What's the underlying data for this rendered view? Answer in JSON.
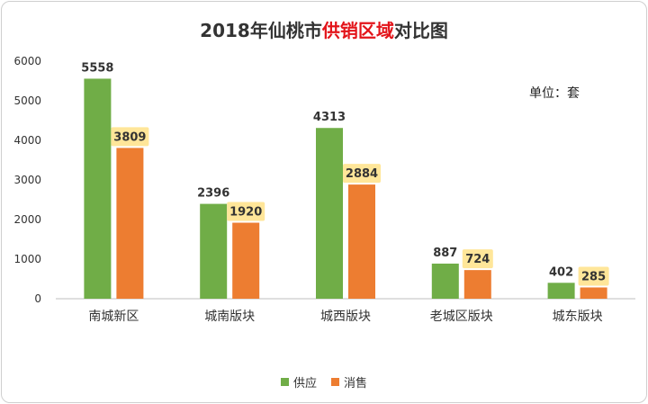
{
  "title": {
    "year": "2018",
    "part1": "年仙桃市",
    "highlight": "供销区域",
    "part2": "对比图"
  },
  "unit_label": "单位：套",
  "chart_data": {
    "type": "bar",
    "title": "2018年仙桃市供销区域对比图",
    "categories": [
      "南城新区",
      "城南版块",
      "城西版块",
      "老城区版块",
      "城东版块"
    ],
    "series": [
      {
        "name": "供应",
        "color": "#70ad47",
        "values": [
          5558,
          2396,
          4313,
          887,
          402
        ]
      },
      {
        "name": "消售",
        "color": "#ed7d31",
        "values": [
          3809,
          1920,
          2884,
          724,
          285
        ]
      }
    ],
    "ylim": [
      0,
      6000
    ],
    "yticks": [
      "0",
      "1000",
      "2000",
      "3000",
      "4000",
      "5000",
      "6000"
    ],
    "grid": false,
    "legend": "bottom",
    "label_highlight_color": "#ffe699"
  }
}
